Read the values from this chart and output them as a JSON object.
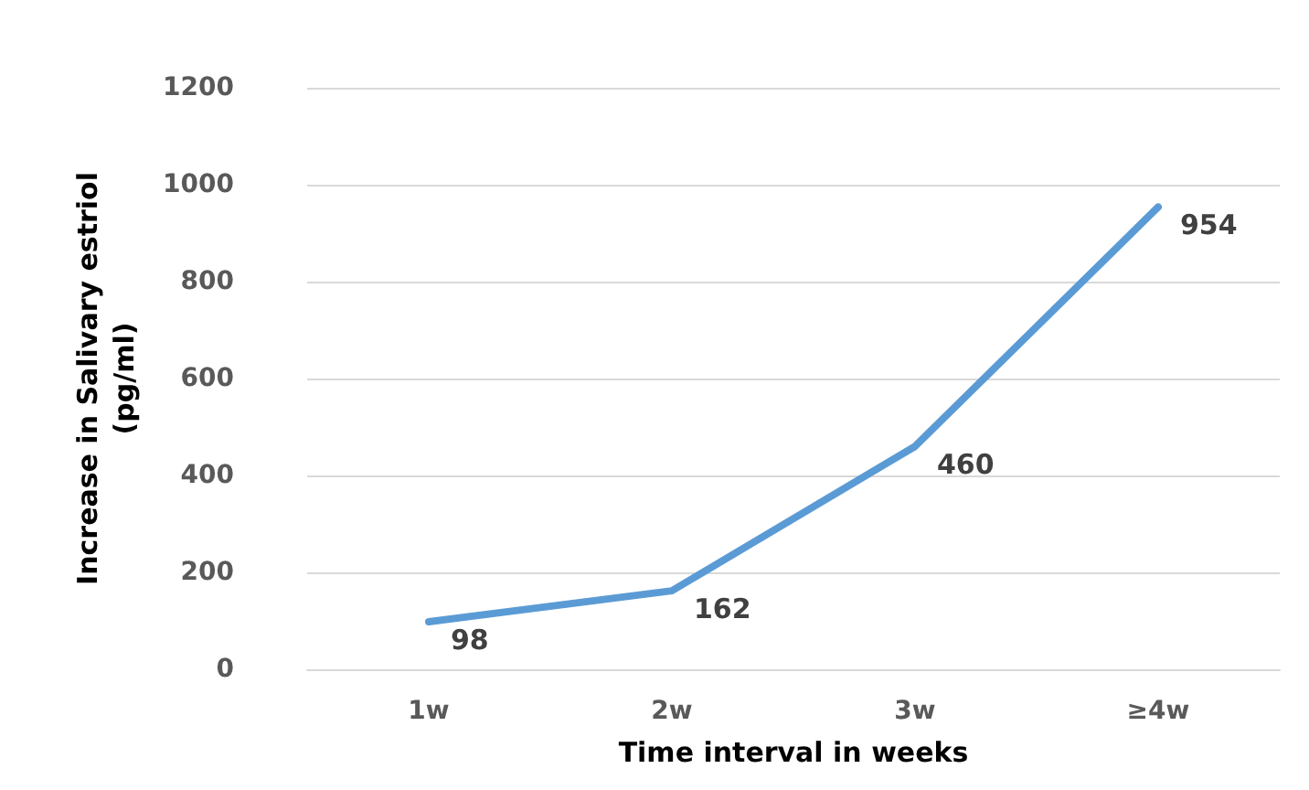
{
  "chart_data": {
    "type": "line",
    "xlabel": "Time interval in weeks",
    "ylabel": "Increase in Salivary estriol\n(pg/ml)",
    "categories": [
      "1w",
      "2w",
      "3w",
      "≥4w"
    ],
    "series": [
      {
        "color": "#5b9bd5",
        "values": [
          98,
          162,
          460,
          954
        ]
      }
    ],
    "ylim": [
      0,
      1200
    ],
    "yticks": [
      0,
      200,
      400,
      600,
      800,
      1000,
      1200
    ],
    "grid": "y",
    "data_labels": true,
    "marker": "none",
    "line_style": "solid"
  }
}
